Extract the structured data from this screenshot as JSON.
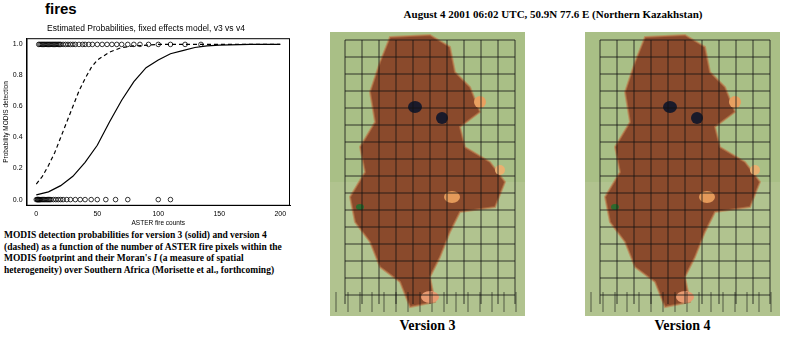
{
  "partial_title": "fires",
  "heading": "August 4 2001 06:02 UTC, 50.9N 77.6 E (Northern Kazakhstan)",
  "chart_data": {
    "type": "scatter",
    "title": "Estimated Probabilities, fixed effects model, v3 vs v4",
    "x_label": "ASTER fire counts",
    "y_label": "Probability MODIS detection",
    "xlim": [
      -8,
      208
    ],
    "ylim": [
      -0.04,
      1.04
    ],
    "xticks": [
      0,
      50,
      100,
      150,
      200
    ],
    "yticks": [
      {
        "value": 0,
        "label": "0.0"
      },
      {
        "value": 0.2,
        "label": "0.2"
      },
      {
        "value": 0.4,
        "label": "0.4"
      },
      {
        "value": 0.6,
        "label": "0.6"
      },
      {
        "value": 0.8,
        "label": "0.8"
      },
      {
        "value": 1,
        "label": "1.0"
      }
    ],
    "grid": false,
    "series": [
      {
        "type": "line",
        "line_style": "solid",
        "color": "#000000",
        "x": [
          0,
          10,
          20,
          30,
          40,
          50,
          60,
          70,
          80,
          90,
          100,
          110,
          120,
          130,
          140,
          150,
          175,
          200
        ],
        "values": [
          0.03,
          0.05,
          0.09,
          0.15,
          0.24,
          0.35,
          0.5,
          0.64,
          0.76,
          0.85,
          0.9,
          0.94,
          0.96,
          0.98,
          0.99,
          0.995,
          1,
          1
        ]
      },
      {
        "type": "line",
        "line_style": "dashed",
        "color": "#000000",
        "x": [
          0,
          5,
          10,
          15,
          20,
          25,
          30,
          35,
          40,
          45,
          50,
          60,
          70,
          80,
          100,
          150,
          200
        ],
        "values": [
          0.1,
          0.15,
          0.22,
          0.3,
          0.4,
          0.5,
          0.6,
          0.7,
          0.78,
          0.85,
          0.9,
          0.95,
          0.98,
          0.99,
          1,
          1,
          1
        ]
      },
      {
        "type": "scatter",
        "marker": "circle",
        "color": "#000000",
        "x": [
          2,
          3,
          4,
          5,
          6,
          7,
          8,
          9,
          10,
          11,
          12,
          13,
          14,
          15,
          16,
          17,
          18,
          19,
          20,
          22,
          24,
          26,
          28,
          30,
          32,
          35,
          38,
          40,
          43,
          46,
          50,
          54,
          58,
          62,
          66,
          70,
          75,
          80,
          85,
          92,
          100,
          110,
          122,
          135,
          0,
          1,
          1,
          2,
          2,
          3,
          3,
          4,
          5,
          6,
          7,
          8,
          9,
          10,
          11,
          12,
          14,
          16,
          18,
          20,
          22,
          25,
          28,
          32,
          36,
          40,
          45,
          50,
          57,
          65,
          75,
          100,
          110
        ],
        "values": [
          1,
          1,
          1,
          1,
          1,
          1,
          1,
          1,
          1,
          1,
          1,
          1,
          1,
          1,
          1,
          1,
          1,
          1,
          1,
          1,
          1,
          1,
          1,
          1,
          1,
          1,
          1,
          1,
          1,
          1,
          1,
          1,
          1,
          1,
          1,
          1,
          1,
          1,
          1,
          1,
          1,
          1,
          1,
          1,
          0,
          0,
          0,
          0,
          0,
          0,
          0,
          0,
          0,
          0,
          0,
          0,
          0,
          0,
          0,
          0,
          0,
          0,
          0,
          0,
          0,
          0,
          0,
          0,
          0,
          0,
          0,
          0,
          0,
          0,
          0,
          0,
          0
        ]
      }
    ]
  },
  "caption": {
    "before": "MODIS detection probabilities for version 3 (solid) and version 4 (dashed) as a function of the number of ASTER fire pixels within the MODIS footprint and their Moran's ",
    "italic": "I",
    "after": " (a measure of spatial heterogeneity) over Southern Africa (Morisette et al., forthcoming)"
  },
  "images": [
    {
      "caption": "Version 3"
    },
    {
      "caption": "Version 4"
    }
  ]
}
